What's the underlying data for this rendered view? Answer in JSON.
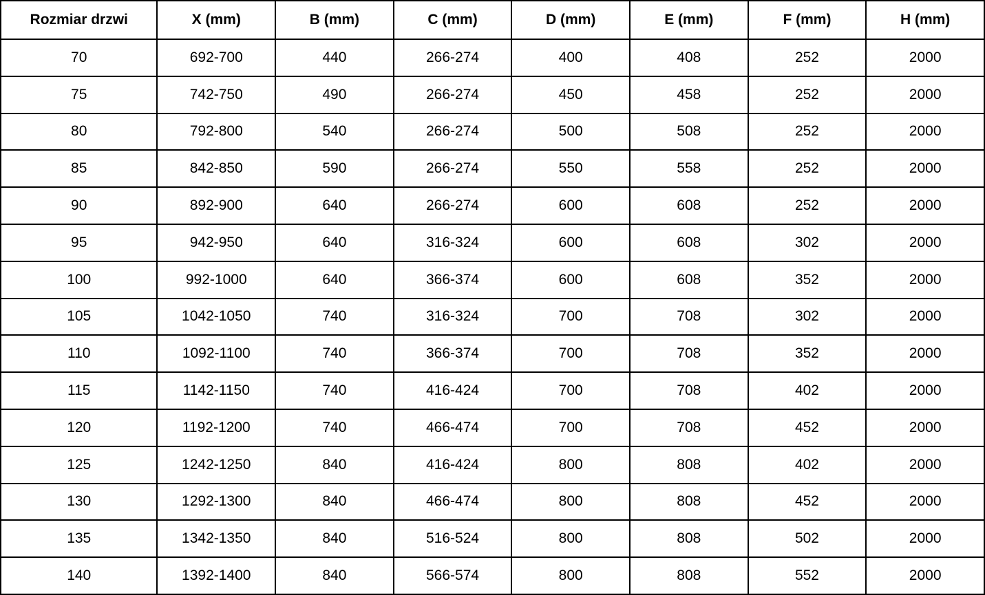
{
  "chart_data": {
    "type": "table",
    "title": "",
    "columns": [
      "Rozmiar drzwi",
      "X (mm)",
      "B (mm)",
      "C (mm)",
      "D (mm)",
      "E (mm)",
      "F (mm)",
      "H (mm)"
    ],
    "rows": [
      [
        "70",
        "692-700",
        "440",
        "266-274",
        "400",
        "408",
        "252",
        "2000"
      ],
      [
        "75",
        "742-750",
        "490",
        "266-274",
        "450",
        "458",
        "252",
        "2000"
      ],
      [
        "80",
        "792-800",
        "540",
        "266-274",
        "500",
        "508",
        "252",
        "2000"
      ],
      [
        "85",
        "842-850",
        "590",
        "266-274",
        "550",
        "558",
        "252",
        "2000"
      ],
      [
        "90",
        "892-900",
        "640",
        "266-274",
        "600",
        "608",
        "252",
        "2000"
      ],
      [
        "95",
        "942-950",
        "640",
        "316-324",
        "600",
        "608",
        "302",
        "2000"
      ],
      [
        "100",
        "992-1000",
        "640",
        "366-374",
        "600",
        "608",
        "352",
        "2000"
      ],
      [
        "105",
        "1042-1050",
        "740",
        "316-324",
        "700",
        "708",
        "302",
        "2000"
      ],
      [
        "110",
        "1092-1100",
        "740",
        "366-374",
        "700",
        "708",
        "352",
        "2000"
      ],
      [
        "115",
        "1142-1150",
        "740",
        "416-424",
        "700",
        "708",
        "402",
        "2000"
      ],
      [
        "120",
        "1192-1200",
        "740",
        "466-474",
        "700",
        "708",
        "452",
        "2000"
      ],
      [
        "125",
        "1242-1250",
        "840",
        "416-424",
        "800",
        "808",
        "402",
        "2000"
      ],
      [
        "130",
        "1292-1300",
        "840",
        "466-474",
        "800",
        "808",
        "452",
        "2000"
      ],
      [
        "135",
        "1342-1350",
        "840",
        "516-524",
        "800",
        "808",
        "502",
        "2000"
      ],
      [
        "140",
        "1392-1400",
        "840",
        "566-574",
        "800",
        "808",
        "552",
        "2000"
      ]
    ],
    "layout": {
      "grid": true,
      "border_color": "#000000",
      "background_color": "#ffffff",
      "text_color": "#000000",
      "header_bold": true
    }
  }
}
